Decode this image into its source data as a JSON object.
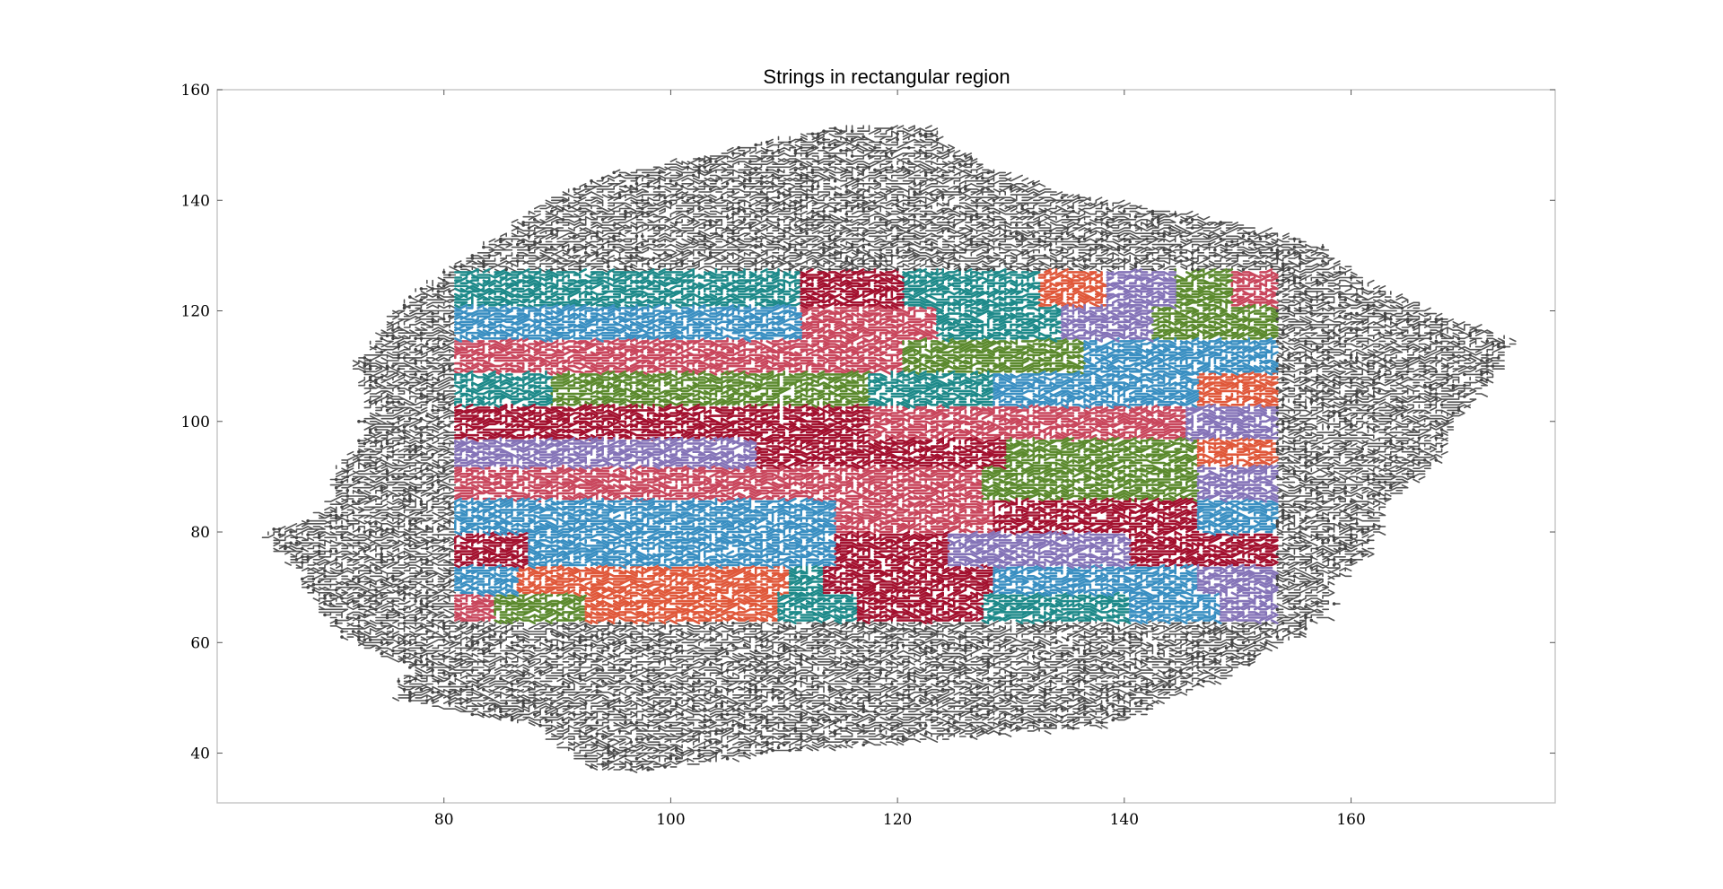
{
  "chart_data": {
    "type": "scatter",
    "title": "Strings in rectangular region",
    "xlabel": "",
    "ylabel": "",
    "xlim": [
      60,
      178
    ],
    "ylim": [
      31,
      160
    ],
    "xticks": [
      80,
      100,
      120,
      140,
      160
    ],
    "yticks": [
      40,
      60,
      80,
      100,
      120,
      140,
      160
    ],
    "grid": false,
    "legend": "none",
    "outer_region": {
      "description_color": "#555555",
      "row_extents": [
        {
          "y": 37,
          "x": [
            93,
            98
          ]
        },
        {
          "y": 40,
          "x": [
            91,
            109
          ]
        },
        {
          "y": 45,
          "x": [
            88,
            139
          ]
        },
        {
          "y": 50,
          "x": [
            75,
            144
          ]
        },
        {
          "y": 55,
          "x": [
            77,
            150
          ]
        },
        {
          "y": 60,
          "x": [
            72,
            154
          ]
        },
        {
          "y": 65,
          "x": [
            69,
            158
          ]
        },
        {
          "y": 70,
          "x": [
            68,
            158
          ]
        },
        {
          "y": 75,
          "x": [
            66,
            161
          ]
        },
        {
          "y": 79,
          "x": [
            64,
            162
          ]
        },
        {
          "y": 85,
          "x": [
            70,
            163
          ]
        },
        {
          "y": 90,
          "x": [
            70,
            166
          ]
        },
        {
          "y": 95,
          "x": [
            72,
            168
          ]
        },
        {
          "y": 100,
          "x": [
            73,
            169
          ]
        },
        {
          "y": 105,
          "x": [
            73,
            171
          ]
        },
        {
          "y": 110,
          "x": [
            72,
            173
          ]
        },
        {
          "y": 115,
          "x": [
            74,
            174
          ]
        },
        {
          "y": 119,
          "x": [
            75,
            168
          ]
        },
        {
          "y": 124,
          "x": [
            78,
            163
          ]
        },
        {
          "y": 127,
          "x": [
            80,
            160
          ]
        },
        {
          "y": 132,
          "x": [
            84,
            157
          ]
        },
        {
          "y": 137,
          "x": [
            87,
            147
          ]
        },
        {
          "y": 141,
          "x": [
            90,
            135
          ]
        },
        {
          "y": 145,
          "x": [
            95,
            129
          ]
        },
        {
          "y": 149,
          "x": [
            105,
            125
          ]
        },
        {
          "y": 153,
          "x": [
            114,
            123
          ]
        }
      ]
    },
    "inner_region": {
      "x": [
        81,
        153
      ],
      "y": [
        64,
        127
      ],
      "colors": [
        "#3a8fc2",
        "#1e8a8a",
        "#c9475d",
        "#a3112f",
        "#5c8a2e",
        "#e0583a",
        "#8574b8"
      ],
      "bands": [
        {
          "y": [
            121,
            127
          ],
          "segments": [
            {
              "x": [
                81,
                111
              ],
              "color": "#1e8a8a"
            },
            {
              "x": [
                111,
                120
              ],
              "color": "#a3112f"
            },
            {
              "x": [
                120,
                132
              ],
              "color": "#1e8a8a"
            },
            {
              "x": [
                132,
                138
              ],
              "color": "#e0583a"
            },
            {
              "x": [
                138,
                144
              ],
              "color": "#8574b8"
            },
            {
              "x": [
                144,
                149
              ],
              "color": "#5c8a2e"
            },
            {
              "x": [
                149,
                153
              ],
              "color": "#c9475d"
            }
          ]
        },
        {
          "y": [
            115,
            121
          ],
          "segments": [
            {
              "x": [
                81,
                111
              ],
              "color": "#3a8fc2"
            },
            {
              "x": [
                111,
                123
              ],
              "color": "#c9475d"
            },
            {
              "x": [
                123,
                134
              ],
              "color": "#1e8a8a"
            },
            {
              "x": [
                134,
                142
              ],
              "color": "#8574b8"
            },
            {
              "x": [
                142,
                153
              ],
              "color": "#5c8a2e"
            }
          ]
        },
        {
          "y": [
            109,
            115
          ],
          "segments": [
            {
              "x": [
                81,
                111
              ],
              "color": "#c9475d"
            },
            {
              "x": [
                111,
                120
              ],
              "color": "#c9475d"
            },
            {
              "x": [
                120,
                136
              ],
              "color": "#5c8a2e"
            },
            {
              "x": [
                136,
                144
              ],
              "color": "#3a8fc2"
            },
            {
              "x": [
                144,
                153
              ],
              "color": "#3a8fc2"
            }
          ]
        },
        {
          "y": [
            103,
            109
          ],
          "segments": [
            {
              "x": [
                81,
                89
              ],
              "color": "#1e8a8a"
            },
            {
              "x": [
                89,
                117
              ],
              "color": "#5c8a2e"
            },
            {
              "x": [
                117,
                128
              ],
              "color": "#1e8a8a"
            },
            {
              "x": [
                128,
                146
              ],
              "color": "#3a8fc2"
            },
            {
              "x": [
                146,
                153
              ],
              "color": "#e0583a"
            }
          ]
        },
        {
          "y": [
            97,
            103
          ],
          "segments": [
            {
              "x": [
                81,
                97
              ],
              "color": "#a3112f"
            },
            {
              "x": [
                97,
                117
              ],
              "color": "#a3112f"
            },
            {
              "x": [
                117,
                145
              ],
              "color": "#c9475d"
            },
            {
              "x": [
                145,
                153
              ],
              "color": "#8574b8"
            }
          ]
        },
        {
          "y": [
            92,
            97
          ],
          "segments": [
            {
              "x": [
                81,
                93
              ],
              "color": "#8574b8"
            },
            {
              "x": [
                93,
                107
              ],
              "color": "#8574b8"
            },
            {
              "x": [
                107,
                129
              ],
              "color": "#a3112f"
            },
            {
              "x": [
                129,
                146
              ],
              "color": "#5c8a2e"
            },
            {
              "x": [
                146,
                153
              ],
              "color": "#e0583a"
            }
          ]
        },
        {
          "y": [
            86,
            92
          ],
          "segments": [
            {
              "x": [
                81,
                127
              ],
              "color": "#c9475d"
            },
            {
              "x": [
                127,
                146
              ],
              "color": "#5c8a2e"
            },
            {
              "x": [
                146,
                153
              ],
              "color": "#8574b8"
            }
          ]
        },
        {
          "y": [
            80,
            86
          ],
          "segments": [
            {
              "x": [
                81,
                114
              ],
              "color": "#3a8fc2"
            },
            {
              "x": [
                114,
                128
              ],
              "color": "#c9475d"
            },
            {
              "x": [
                128,
                146
              ],
              "color": "#a3112f"
            },
            {
              "x": [
                146,
                153
              ],
              "color": "#3a8fc2"
            }
          ]
        },
        {
          "y": [
            74,
            80
          ],
          "segments": [
            {
              "x": [
                81,
                87
              ],
              "color": "#a3112f"
            },
            {
              "x": [
                87,
                114
              ],
              "color": "#3a8fc2"
            },
            {
              "x": [
                114,
                124
              ],
              "color": "#a3112f"
            },
            {
              "x": [
                124,
                140
              ],
              "color": "#8574b8"
            },
            {
              "x": [
                140,
                153
              ],
              "color": "#a3112f"
            }
          ]
        },
        {
          "y": [
            69,
            74
          ],
          "segments": [
            {
              "x": [
                81,
                86
              ],
              "color": "#3a8fc2"
            },
            {
              "x": [
                86,
                110
              ],
              "color": "#e0583a"
            },
            {
              "x": [
                110,
                113
              ],
              "color": "#1e8a8a"
            },
            {
              "x": [
                113,
                128
              ],
              "color": "#a3112f"
            },
            {
              "x": [
                128,
                146
              ],
              "color": "#3a8fc2"
            },
            {
              "x": [
                146,
                153
              ],
              "color": "#8574b8"
            }
          ]
        },
        {
          "y": [
            64,
            69
          ],
          "segments": [
            {
              "x": [
                81,
                84
              ],
              "color": "#c9475d"
            },
            {
              "x": [
                84,
                92
              ],
              "color": "#5c8a2e"
            },
            {
              "x": [
                92,
                109
              ],
              "color": "#e0583a"
            },
            {
              "x": [
                109,
                116
              ],
              "color": "#1e8a8a"
            },
            {
              "x": [
                116,
                127
              ],
              "color": "#a3112f"
            },
            {
              "x": [
                127,
                140
              ],
              "color": "#1e8a8a"
            },
            {
              "x": [
                140,
                148
              ],
              "color": "#3a8fc2"
            },
            {
              "x": [
                148,
                153
              ],
              "color": "#8574b8"
            }
          ]
        }
      ]
    }
  }
}
